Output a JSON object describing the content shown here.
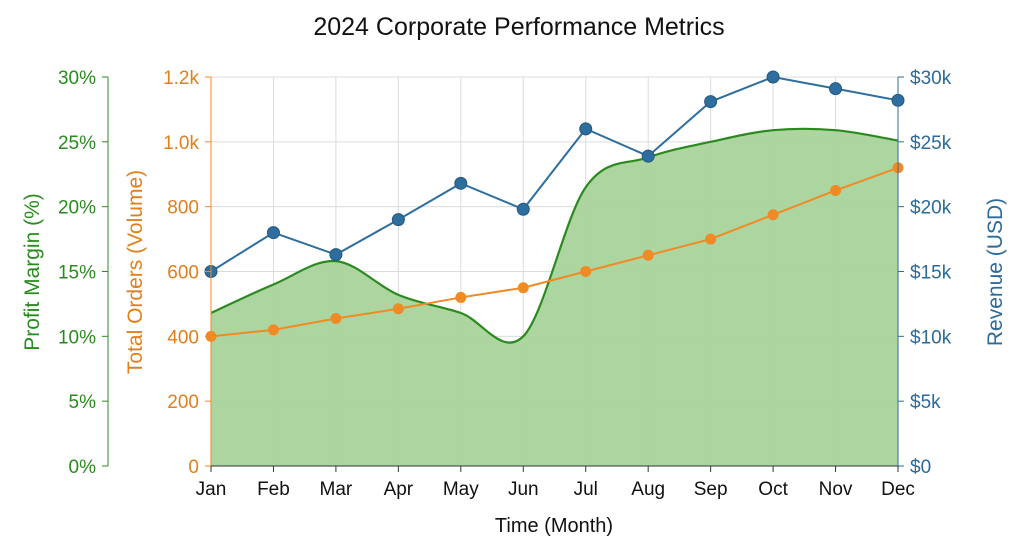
{
  "chart_data": {
    "type": "line",
    "title": "2024 Corporate Performance Metrics",
    "xlabel": "Time (Month)",
    "categories": [
      "Jan",
      "Feb",
      "Mar",
      "Apr",
      "May",
      "Jun",
      "Jul",
      "Aug",
      "Sep",
      "Oct",
      "Nov",
      "Dec"
    ],
    "grid": true,
    "legend": "none",
    "colors": {
      "profit_margin": "#2a8a1f",
      "profit_fill": "#a9d39b",
      "total_orders": "#f08a24",
      "revenue": "#2e6e9e"
    },
    "axes": {
      "left_outer": {
        "label": "Profit Margin (%)",
        "ylim": [
          0,
          30
        ],
        "ticks": [
          "0%",
          "5%",
          "10%",
          "15%",
          "20%",
          "25%",
          "30%"
        ]
      },
      "left_inner": {
        "label": "Total Orders (Volume)",
        "ylim": [
          0,
          1200
        ],
        "ticks": [
          "0",
          "200",
          "400",
          "600",
          "800",
          "1.0k",
          "1.2k"
        ]
      },
      "right": {
        "label": "Revenue (USD)",
        "ylim": [
          0,
          30000
        ],
        "ticks": [
          "$0",
          "$5k",
          "$10k",
          "$15k",
          "$20k",
          "$25k",
          "$30k"
        ]
      }
    },
    "series": [
      {
        "name": "Profit Margin (%)",
        "type": "area",
        "axis": "left_outer",
        "values": [
          11.8,
          14.0,
          15.8,
          13.2,
          11.8,
          10.0,
          21.5,
          23.8,
          25.0,
          25.9,
          25.9,
          25.1
        ]
      },
      {
        "name": "Total Orders (Volume)",
        "type": "line",
        "axis": "left_inner",
        "values": [
          400,
          420,
          455,
          485,
          520,
          550,
          600,
          650,
          700,
          775,
          850,
          920
        ]
      },
      {
        "name": "Revenue (USD)",
        "type": "line",
        "axis": "right",
        "values": [
          15000,
          18000,
          16300,
          19000,
          21800,
          19800,
          26000,
          23900,
          28100,
          30000,
          29100,
          28200
        ]
      }
    ]
  }
}
